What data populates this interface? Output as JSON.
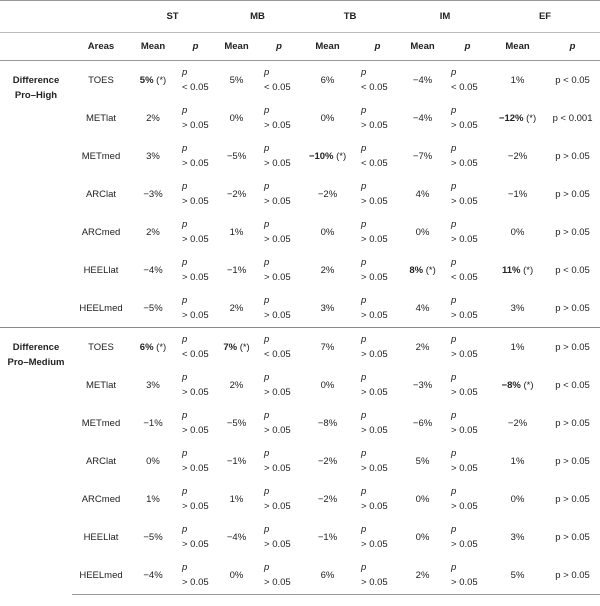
{
  "header": {
    "groups": [
      "ST",
      "MB",
      "TB",
      "IM",
      "EF"
    ],
    "subheaders": [
      "Areas",
      "Mean",
      "p",
      "Mean",
      "p",
      "Mean",
      "p",
      "Mean",
      "p",
      "Mean",
      "p"
    ]
  },
  "sections": [
    {
      "label": "Difference Pro–High",
      "rows": [
        {
          "area": "TOES",
          "cells": [
            {
              "value": "5%",
              "note": "(*)"
            },
            {
              "s": "p",
              "v": "< 0.05"
            },
            "5%",
            {
              "s": "p",
              "v": "< 0.05"
            },
            "6%",
            {
              "s": "p",
              "v": "< 0.05"
            },
            "−4%",
            {
              "s": "p",
              "v": "< 0.05"
            },
            "1%",
            "p < 0.05"
          ]
        },
        {
          "area": "METlat",
          "cells": [
            "2%",
            {
              "s": "p",
              "v": "> 0.05"
            },
            "0%",
            {
              "s": "p",
              "v": "> 0.05"
            },
            "0%",
            {
              "s": "p",
              "v": "> 0.05"
            },
            "−4%",
            {
              "s": "p",
              "v": "> 0.05"
            },
            {
              "value": "−12%",
              "note": "(*)"
            },
            "p < 0.001"
          ]
        },
        {
          "area": "METmed",
          "cells": [
            "3%",
            {
              "s": "p",
              "v": "> 0.05"
            },
            "−5%",
            {
              "s": "p",
              "v": "> 0.05"
            },
            {
              "value": "−10%",
              "note": "(*)"
            },
            {
              "s": "p",
              "v": "< 0.05"
            },
            "−7%",
            {
              "s": "p",
              "v": "> 0.05"
            },
            "−2%",
            "p > 0.05"
          ]
        },
        {
          "area": "ARClat",
          "cells": [
            "−3%",
            {
              "s": "p",
              "v": "> 0.05"
            },
            "−2%",
            {
              "s": "p",
              "v": "> 0.05"
            },
            "−2%",
            {
              "s": "p",
              "v": "> 0.05"
            },
            "4%",
            {
              "s": "p",
              "v": "> 0.05"
            },
            "−1%",
            "p > 0.05"
          ]
        },
        {
          "area": "ARCmed",
          "cells": [
            "2%",
            {
              "s": "p",
              "v": "> 0.05"
            },
            "1%",
            {
              "s": "p",
              "v": "> 0.05"
            },
            "0%",
            {
              "s": "p",
              "v": "> 0.05"
            },
            "0%",
            {
              "s": "p",
              "v": "> 0.05"
            },
            "0%",
            "p > 0.05"
          ]
        },
        {
          "area": "HEELlat",
          "cells": [
            "−4%",
            {
              "s": "p",
              "v": "> 0.05"
            },
            "−1%",
            {
              "s": "p",
              "v": "> 0.05"
            },
            "2%",
            {
              "s": "p",
              "v": "> 0.05"
            },
            {
              "value": "8%",
              "note": "(*)"
            },
            {
              "s": "p",
              "v": "< 0.05"
            },
            {
              "value": "11%",
              "note": "(*)"
            },
            "p < 0.05"
          ]
        },
        {
          "area": "HEELmed",
          "cells": [
            "−5%",
            {
              "s": "p",
              "v": "> 0.05"
            },
            "2%",
            {
              "s": "p",
              "v": "> 0.05"
            },
            "3%",
            {
              "s": "p",
              "v": "> 0.05"
            },
            "4%",
            {
              "s": "p",
              "v": "> 0.05"
            },
            "3%",
            "p > 0.05"
          ]
        }
      ]
    },
    {
      "label": "Difference Pro–Medium",
      "rows": [
        {
          "area": "TOES",
          "cells": [
            {
              "value": "6%",
              "note": "(*)"
            },
            {
              "s": "p",
              "v": "< 0.05"
            },
            {
              "value": "7%",
              "note": "(*)"
            },
            {
              "s": "p",
              "v": "< 0.05"
            },
            "7%",
            {
              "s": "p",
              "v": "> 0.05"
            },
            "2%",
            {
              "s": "p",
              "v": "> 0.05"
            },
            "1%",
            "p > 0.05"
          ]
        },
        {
          "area": "METlat",
          "cells": [
            "3%",
            {
              "s": "p",
              "v": "> 0.05"
            },
            "2%",
            {
              "s": "p",
              "v": "> 0.05"
            },
            "0%",
            {
              "s": "p",
              "v": "> 0.05"
            },
            "−3%",
            {
              "s": "p",
              "v": "> 0.05"
            },
            {
              "value": "−8%",
              "note": "(*)"
            },
            "p < 0.05"
          ]
        },
        {
          "area": "METmed",
          "cells": [
            "−1%",
            {
              "s": "p",
              "v": "> 0.05"
            },
            "−5%",
            {
              "s": "p",
              "v": "> 0.05"
            },
            "−8%",
            {
              "s": "p",
              "v": "> 0.05"
            },
            "−6%",
            {
              "s": "p",
              "v": "> 0.05"
            },
            "−2%",
            "p > 0.05"
          ]
        },
        {
          "area": "ARClat",
          "cells": [
            "0%",
            {
              "s": "p",
              "v": "> 0.05"
            },
            "−1%",
            {
              "s": "p",
              "v": "> 0.05"
            },
            "−2%",
            {
              "s": "p",
              "v": "> 0.05"
            },
            "5%",
            {
              "s": "p",
              "v": "> 0.05"
            },
            "1%",
            "p > 0.05"
          ]
        },
        {
          "area": "ARCmed",
          "cells": [
            "1%",
            {
              "s": "p",
              "v": "> 0.05"
            },
            "1%",
            {
              "s": "p",
              "v": "> 0.05"
            },
            "−2%",
            {
              "s": "p",
              "v": "> 0.05"
            },
            "0%",
            {
              "s": "p",
              "v": "> 0.05"
            },
            "0%",
            "p > 0.05"
          ]
        },
        {
          "area": "HEELlat",
          "cells": [
            "−5%",
            {
              "s": "p",
              "v": "> 0.05"
            },
            "−4%",
            {
              "s": "p",
              "v": "> 0.05"
            },
            "−1%",
            {
              "s": "p",
              "v": "> 0.05"
            },
            "0%",
            {
              "s": "p",
              "v": "> 0.05"
            },
            "3%",
            "p > 0.05"
          ]
        },
        {
          "area": "HEELmed",
          "cells": [
            "−4%",
            {
              "s": "p",
              "v": "> 0.05"
            },
            "0%",
            {
              "s": "p",
              "v": "> 0.05"
            },
            "6%",
            {
              "s": "p",
              "v": "> 0.05"
            },
            "2%",
            {
              "s": "p",
              "v": "> 0.05"
            },
            "5%",
            "p > 0.05"
          ]
        }
      ]
    }
  ]
}
